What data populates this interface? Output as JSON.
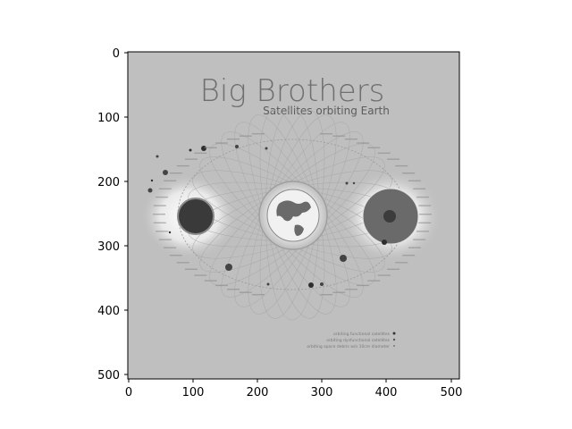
{
  "image": {
    "title": "Big Brothers",
    "subtitle": "Satellites orbiting Earth",
    "legend": [
      "orbiting functional satellites",
      "orbiting dysfunctional satellites",
      "orbiting space debris w/o 10cm diameter"
    ]
  },
  "axes": {
    "x_ticks": [
      "0",
      "100",
      "200",
      "300",
      "400",
      "500"
    ],
    "y_ticks": [
      "0",
      "100",
      "200",
      "300",
      "400",
      "500"
    ]
  },
  "colors": {
    "background": "#bfbfbf",
    "frame": "#000000"
  }
}
